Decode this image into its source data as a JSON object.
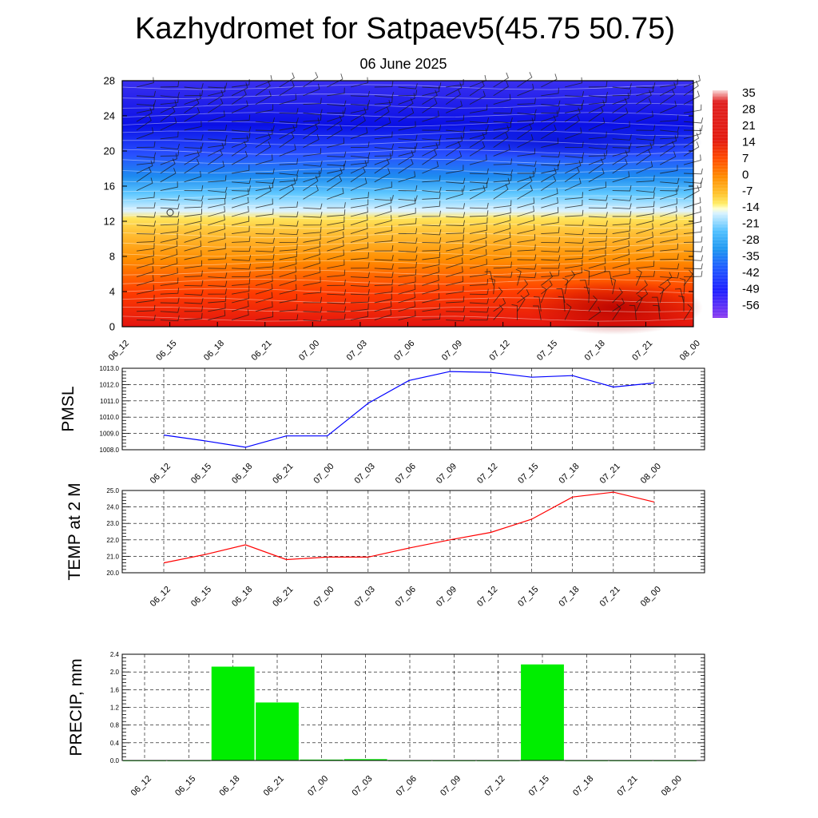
{
  "header": {
    "title": "Kazhydromet for Satpaev5(45.75 50.75)",
    "date": "06 June 2025"
  },
  "time_labels": [
    "06_12",
    "06_15",
    "06_18",
    "06_21",
    "07_00",
    "07_03",
    "07_06",
    "07_09",
    "07_12",
    "07_15",
    "07_18",
    "07_21",
    "08_00"
  ],
  "chart_data": [
    {
      "type": "heatmap",
      "y_ticks": [
        0,
        4,
        8,
        12,
        16,
        20,
        24,
        28
      ],
      "ylim": [
        0,
        28
      ],
      "colorbar_labels": [
        "35",
        "28",
        "21",
        "14",
        "7",
        "0",
        "-7",
        "-14",
        "-21",
        "-28",
        "-35",
        "-42",
        "-49",
        "-56"
      ],
      "colors": {
        "warm_low": "#e3140f",
        "hot_surface": "#c40000",
        "orange": "#ff8c00",
        "yellow": "#ffe45a",
        "light_blue": "#bfe6ff",
        "cyan": "#1eaaf0",
        "blue": "#1e46ff",
        "deep_blue": "#0a10e6",
        "violet": "#8a3cf0"
      }
    },
    {
      "type": "line",
      "ylabel": "PMSL",
      "ylim": [
        1008.0,
        1013.0
      ],
      "y_ticks": [
        "1008.0",
        "1009.0",
        "1010.0",
        "1011.0",
        "1012.0",
        "1013.0"
      ],
      "series": [
        {
          "color": "#0000ff",
          "values": [
            1008.9,
            1008.55,
            1008.15,
            1008.85,
            1008.85,
            1010.85,
            1012.25,
            1012.8,
            1012.75,
            1012.45,
            1012.55,
            1011.85,
            1012.1
          ]
        }
      ]
    },
    {
      "type": "line",
      "ylabel": "TEMP at 2 M",
      "ylim": [
        20.0,
        25.0
      ],
      "y_ticks": [
        "20.0",
        "21.0",
        "22.0",
        "23.0",
        "24.0",
        "25.0"
      ],
      "series": [
        {
          "color": "#ff0000",
          "values": [
            20.6,
            21.1,
            21.7,
            20.8,
            20.95,
            20.95,
            21.5,
            22.0,
            22.45,
            23.25,
            24.6,
            24.9,
            24.3
          ]
        }
      ]
    },
    {
      "type": "bar",
      "ylabel": "PRECIP, mm",
      "ylim": [
        0,
        2.4
      ],
      "y_ticks": [
        "0.0",
        "0.4",
        "0.8",
        "1.2",
        "1.6",
        "2.0",
        "2.4"
      ],
      "color": "#00ee00",
      "values": [
        0,
        0,
        2.12,
        1.31,
        0.02,
        0.03,
        0,
        0,
        0,
        2.17,
        0,
        0,
        0
      ]
    }
  ]
}
